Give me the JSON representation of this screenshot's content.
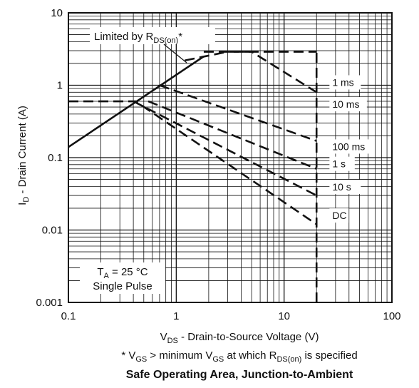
{
  "chart_data": {
    "type": "line",
    "title": "Safe Operating Area, Junction-to-Ambient",
    "xlabel": "V_DS - Drain-to-Source Voltage (V)",
    "ylabel": "I_D - Drain Current (A)",
    "footnote": "* V_GS > minimum V_GS at which R_DS(on) is specified",
    "x_scale": "log",
    "y_scale": "log",
    "xlim": [
      0.1,
      100
    ],
    "ylim": [
      0.001,
      10
    ],
    "x_tick_labels": [
      "0.1",
      "1",
      "10",
      "100"
    ],
    "y_tick_labels": [
      "10",
      "1",
      "0.1",
      "0.01",
      "0.001"
    ],
    "grid": true,
    "limit_line": {
      "label": "Limited by R_DS(on)*",
      "points": [
        [
          0.1,
          0.14
        ],
        [
          1.8,
          2.5
        ]
      ]
    },
    "series": [
      {
        "name": "1 ms",
        "points": [
          [
            1.8,
            2.9
          ],
          [
            5,
            2.9
          ],
          [
            20,
            2.9
          ]
        ]
      },
      {
        "name": "10 ms",
        "points": [
          [
            1.2,
            2.2
          ],
          [
            3,
            2.9
          ],
          [
            5,
            2.9
          ],
          [
            20,
            0.8
          ]
        ]
      },
      {
        "name": "100 ms",
        "points": [
          [
            0.7,
            1.0
          ],
          [
            20,
            0.17
          ]
        ]
      },
      {
        "name": "1 s",
        "points": [
          [
            0.55,
            0.6
          ],
          [
            20,
            0.07
          ]
        ]
      },
      {
        "name": "10 s",
        "points": [
          [
            0.4,
            0.6
          ],
          [
            20,
            0.03
          ]
        ]
      },
      {
        "name": "DC",
        "points": [
          [
            0.1,
            0.6
          ],
          [
            0.42,
            0.6
          ],
          [
            20,
            0.012
          ]
        ]
      }
    ],
    "max_vds_line": {
      "x": 20,
      "y_range": [
        0.001,
        2.9
      ]
    },
    "annotation": {
      "line1_main": "T",
      "line1_sub": "A",
      "line1_rest": " = 25 °C",
      "line2": "Single Pulse"
    }
  }
}
